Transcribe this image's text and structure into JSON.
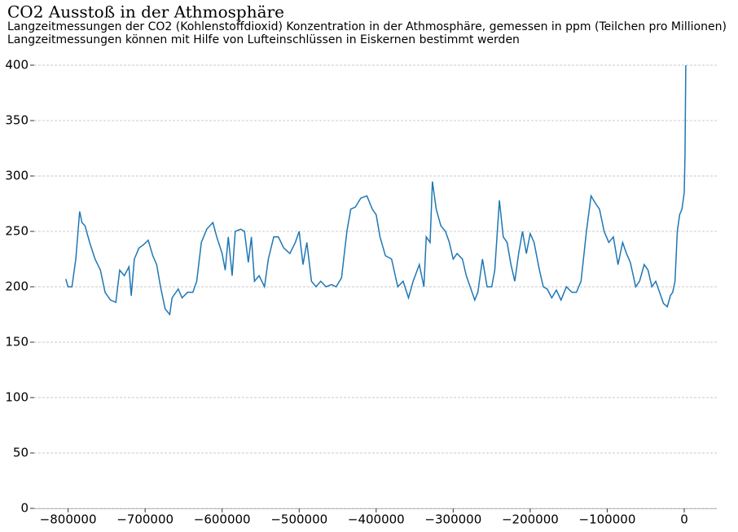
{
  "chart_data": {
    "type": "line",
    "title": "CO2 Ausstoß in der Athmosphäre",
    "subtitle": "Langzeitmessungen der CO2 (Kohlenstoffdioxid) Konzentration in der Athmosphäre, gemessen in ppm (Teilchen pro Millionen)",
    "subtitle2": "Langzeitmessungen können mit Hilfe von Lufteinschlüssen in Eiskernen bestimmt werden",
    "x": [
      -803000,
      -800000,
      -795000,
      -790000,
      -785000,
      -782000,
      -778000,
      -772000,
      -765000,
      -758000,
      -752000,
      -745000,
      -738000,
      -733000,
      -727000,
      -721000,
      -718000,
      -714000,
      -708000,
      -702000,
      -696000,
      -690000,
      -685000,
      -680000,
      -674000,
      -668000,
      -665000,
      -657000,
      -652000,
      -645000,
      -638000,
      -633000,
      -627000,
      -620000,
      -612000,
      -607000,
      -600000,
      -596000,
      -592000,
      -587000,
      -583000,
      -576000,
      -571000,
      -566000,
      -562000,
      -558000,
      -552000,
      -545000,
      -540000,
      -533000,
      -527000,
      -520000,
      -512000,
      -505000,
      -500000,
      -495000,
      -490000,
      -484000,
      -478000,
      -472000,
      -465000,
      -458000,
      -452000,
      -445000,
      -438000,
      -433000,
      -427000,
      -420000,
      -412000,
      -405000,
      -400000,
      -395000,
      -388000,
      -380000,
      -372000,
      -365000,
      -358000,
      -352000,
      -344000,
      -338000,
      -335000,
      -330000,
      -327000,
      -322000,
      -316000,
      -310000,
      -305000,
      -300000,
      -295000,
      -288000,
      -283000,
      -278000,
      -272000,
      -268000,
      -262000,
      -256000,
      -250000,
      -246000,
      -240000,
      -235000,
      -230000,
      -225000,
      -220000,
      -215000,
      -210000,
      -205000,
      -200000,
      -195000,
      -188000,
      -183000,
      -178000,
      -172000,
      -166000,
      -160000,
      -153000,
      -146000,
      -140000,
      -134000,
      -127000,
      -121000,
      -115000,
      -110000,
      -104000,
      -98000,
      -92000,
      -86000,
      -80000,
      -75000,
      -70000,
      -63000,
      -58000,
      -52000,
      -47000,
      -42000,
      -37000,
      -32000,
      -27000,
      -22000,
      -18000,
      -15000,
      -12000,
      -9000,
      -6000,
      -3000,
      -1000,
      0,
      1000,
      2000
    ],
    "series": [
      {
        "color": "#1f77b4",
        "values": [
          207,
          200,
          200,
          225,
          268,
          258,
          255,
          240,
          225,
          215,
          195,
          188,
          186,
          215,
          210,
          218,
          192,
          225,
          235,
          238,
          242,
          228,
          220,
          200,
          180,
          175,
          190,
          198,
          190,
          195,
          195,
          205,
          240,
          252,
          258,
          245,
          230,
          215,
          245,
          210,
          250,
          252,
          250,
          222,
          245,
          205,
          210,
          200,
          225,
          245,
          245,
          235,
          230,
          240,
          250,
          220,
          240,
          205,
          200,
          205,
          200,
          202,
          200,
          208,
          250,
          270,
          272,
          280,
          282,
          270,
          265,
          245,
          228,
          225,
          200,
          205,
          190,
          205,
          220,
          200,
          245,
          240,
          295,
          270,
          255,
          250,
          240,
          225,
          230,
          225,
          210,
          200,
          188,
          195,
          225,
          200,
          200,
          215,
          278,
          245,
          240,
          220,
          205,
          230,
          250,
          230,
          248,
          240,
          215,
          200,
          198,
          190,
          197,
          188,
          200,
          195,
          195,
          205,
          250,
          282,
          275,
          270,
          250,
          240,
          245,
          220,
          240,
          230,
          222,
          200,
          205,
          220,
          215,
          200,
          205,
          195,
          185,
          182,
          192,
          195,
          205,
          250,
          265,
          270,
          280,
          285,
          320,
          400
        ]
      }
    ],
    "xlim": [
      -844000,
      42300
    ],
    "ylim": [
      0,
      400
    ],
    "xticks": [
      {
        "value": -800000,
        "label": "−800000"
      },
      {
        "value": -700000,
        "label": "−700000"
      },
      {
        "value": -600000,
        "label": "−600000"
      },
      {
        "value": -500000,
        "label": "−500000"
      },
      {
        "value": -400000,
        "label": "−400000"
      },
      {
        "value": -300000,
        "label": "−300000"
      },
      {
        "value": -200000,
        "label": "−200000"
      },
      {
        "value": -100000,
        "label": "−100000"
      },
      0
    ],
    "yticks": [
      0,
      50,
      100,
      150,
      200,
      250,
      300,
      350,
      400
    ],
    "grid": true
  }
}
